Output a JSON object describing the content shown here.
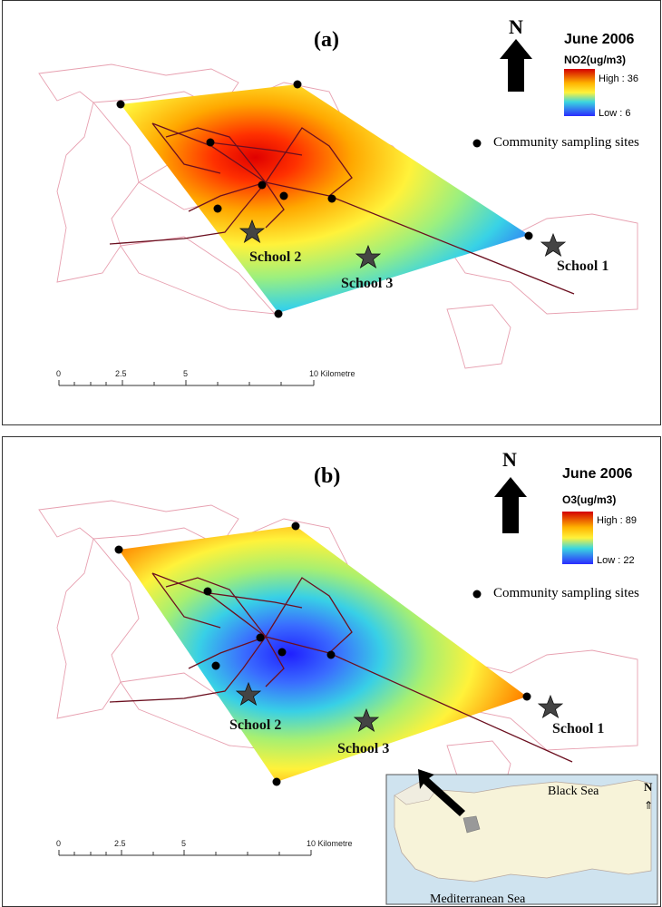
{
  "panels": [
    {
      "label": "(a)",
      "date": "June 2006",
      "variable": "NO2(ug/m3)",
      "high": "High : 36",
      "low": "Low : 6",
      "ramp_colors": [
        "#d40000",
        "#ff5a00",
        "#ffb300",
        "#fff23a",
        "#9ef07a",
        "#3ad6e0",
        "#3a8cff",
        "#2b2bff"
      ]
    },
    {
      "label": "(b)",
      "date": "June 2006",
      "variable": "O3(ug/m3)",
      "high": "High : 89",
      "low": "Low : 22",
      "ramp_colors": [
        "#d40000",
        "#ff5a00",
        "#ffb300",
        "#fff23a",
        "#9ef07a",
        "#3ad6e0",
        "#3a8cff",
        "#2b2bff"
      ]
    }
  ],
  "north_letter": "N",
  "sampling_sites_legend": "Community sampling sites",
  "schools": [
    "School 1",
    "School 2",
    "School 3"
  ],
  "scale_bar": {
    "ticks": [
      "0",
      "2.5",
      "5",
      "10 Kilometre"
    ]
  },
  "inset": {
    "north_letter": "N",
    "north_arrow": "⇑",
    "black_sea": "Black Sea",
    "mediterranean_sea": "Mediterranean Sea"
  },
  "colors": {
    "roads": "#6b0f1f",
    "boundaries": "#e7a0b0",
    "points": "#000000",
    "stars": "#444444",
    "land_inset": "#f7f3d9",
    "sea_inset": "#cfe3ef"
  }
}
